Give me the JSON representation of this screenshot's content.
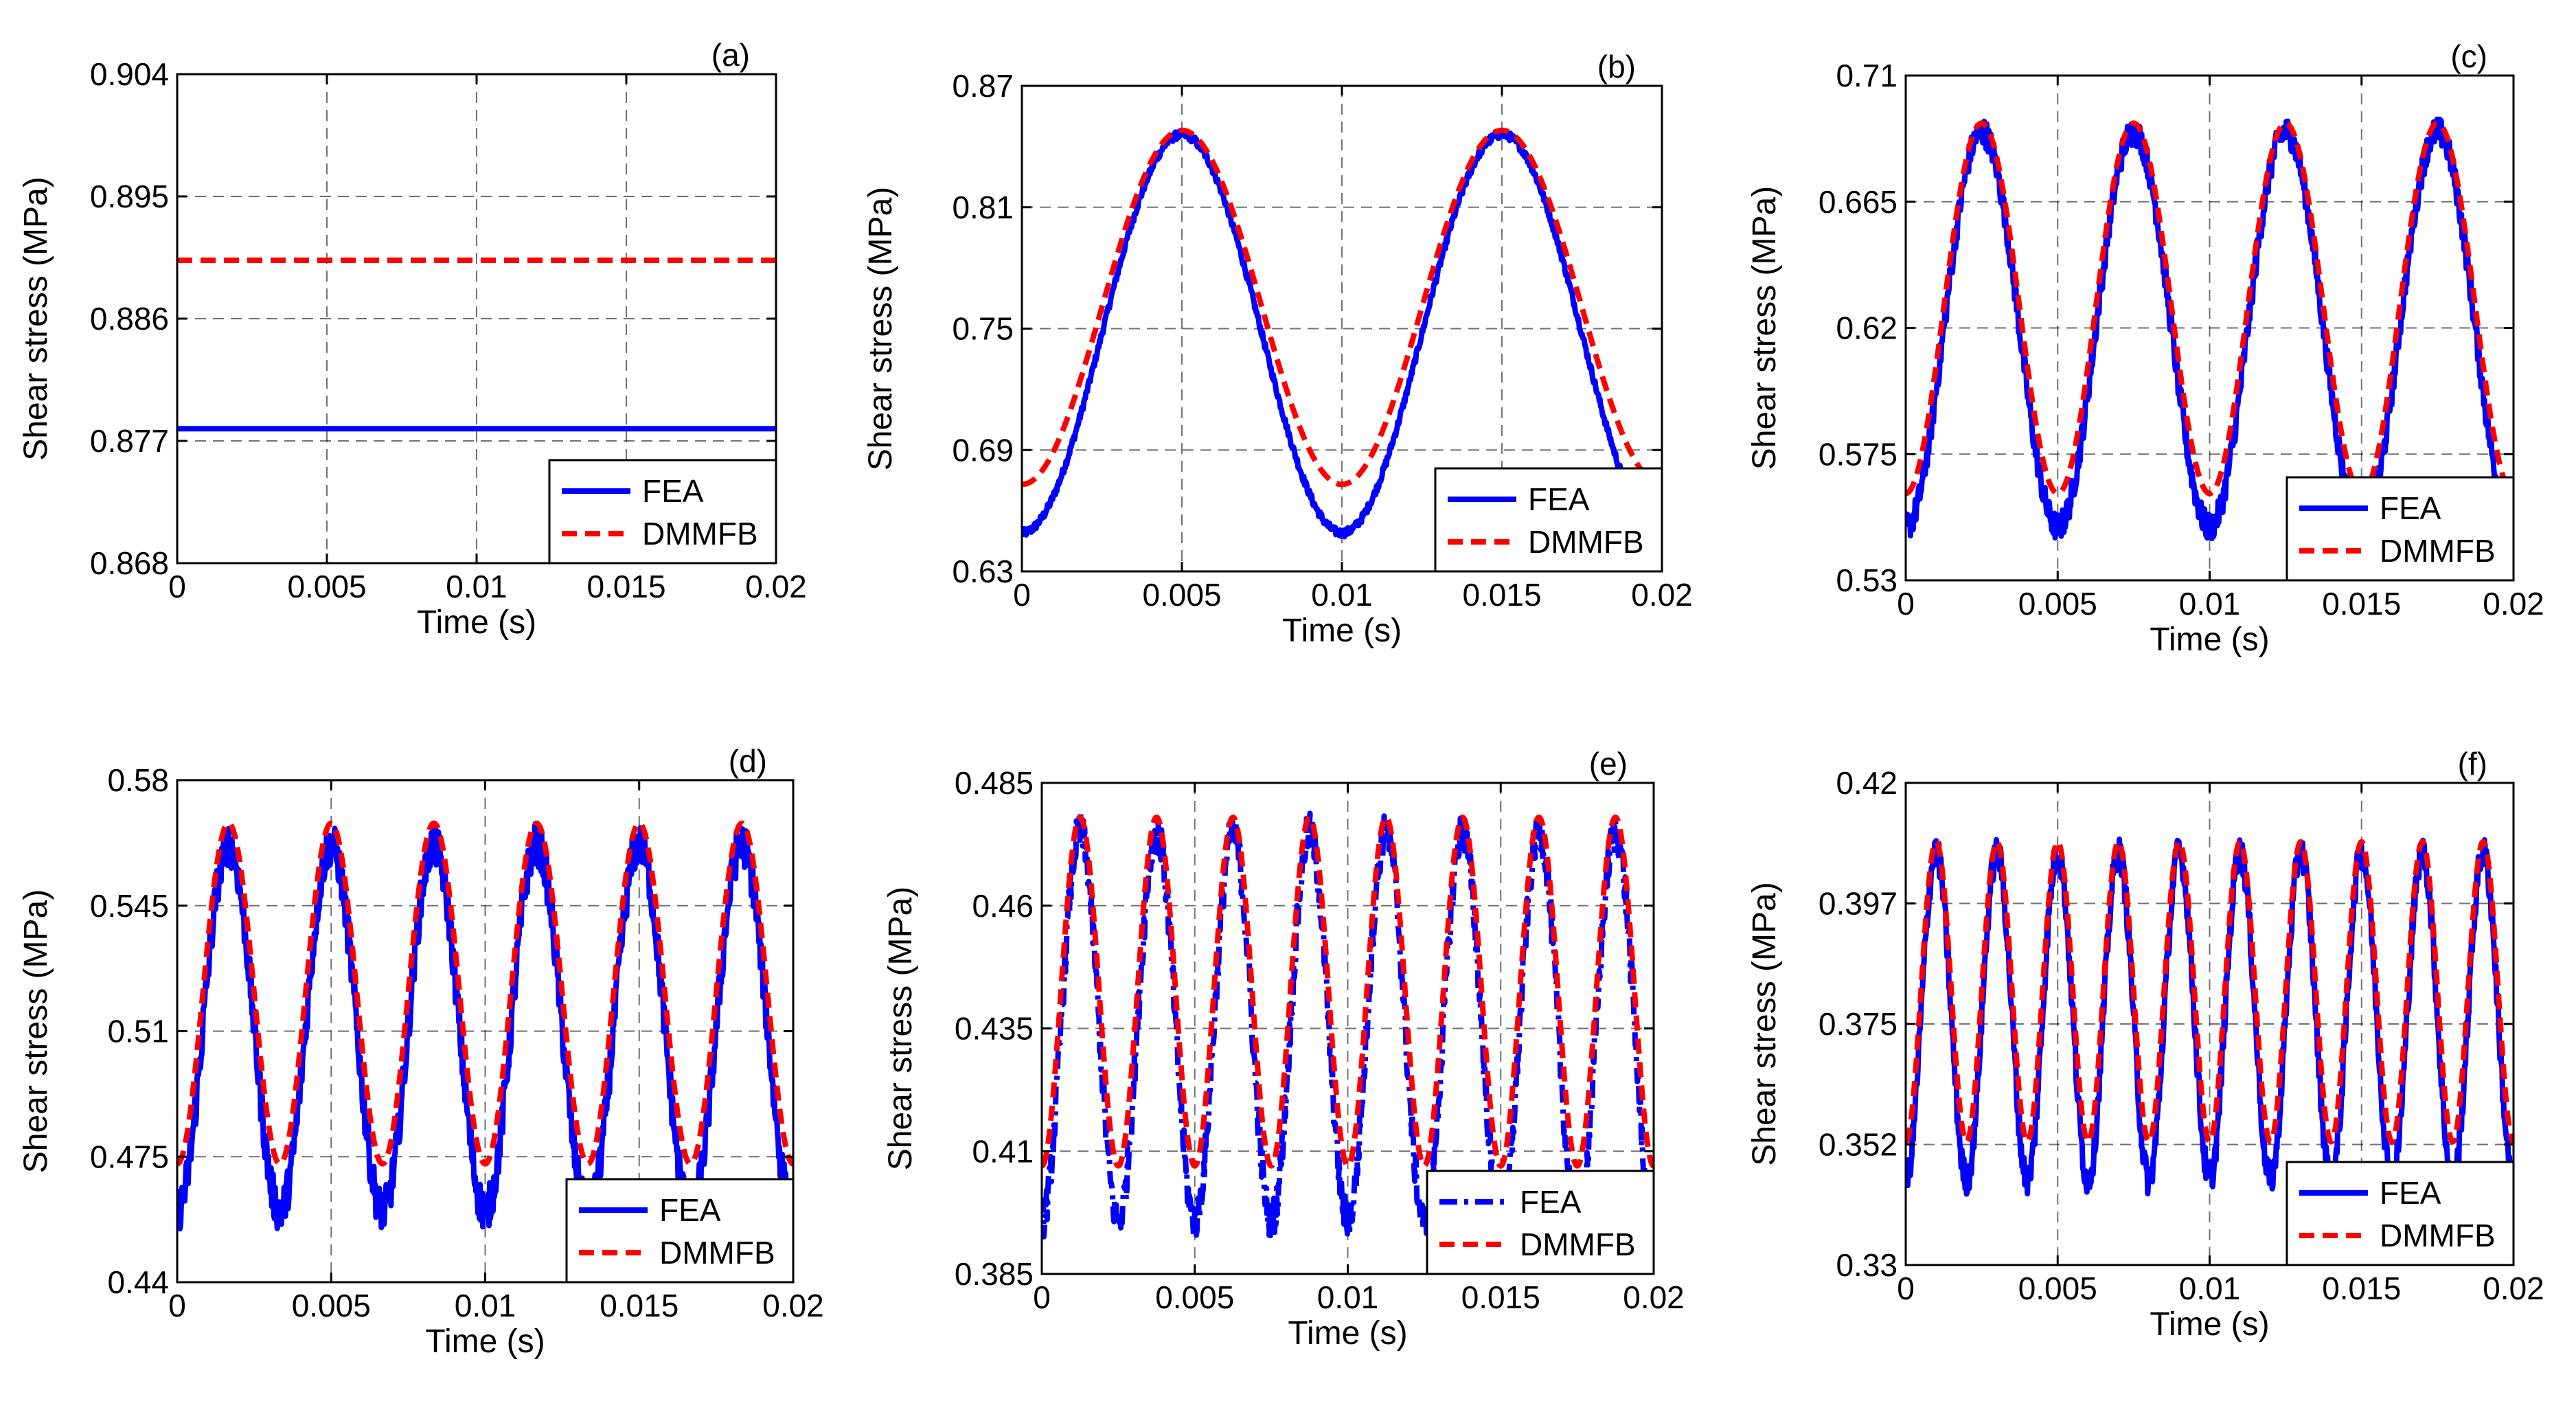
{
  "figure": {
    "colors": {
      "fea": "#0000ff",
      "dmmfb": "#ff0000",
      "grid": "#000000"
    }
  },
  "chart_data": [
    {
      "panel": "(a)",
      "type": "line",
      "xlabel": "Time (s)",
      "ylabel": "Shear stress (MPa)",
      "xlim": [
        0,
        0.02
      ],
      "ylim": [
        0.868,
        0.904
      ],
      "xticks": [
        "0",
        "0.005",
        "0.01",
        "0.015",
        "0.02"
      ],
      "yticks": [
        "0.868",
        "0.877",
        "0.886",
        "0.895",
        "0.904"
      ],
      "legend": {
        "entries": [
          "FEA",
          "DMMFB"
        ],
        "position": "bottom-right"
      },
      "series": [
        {
          "name": "FEA",
          "style": "solid",
          "mean": 0.8779,
          "amplitude": 0,
          "periods": 0,
          "minus_cos": false,
          "noise": 0
        },
        {
          "name": "DMMFB",
          "style": "dashed",
          "mean": 0.8903,
          "amplitude": 0,
          "periods": 0,
          "minus_cos": false,
          "noise": 0
        }
      ]
    },
    {
      "panel": "(b)",
      "type": "line",
      "xlabel": "Time (s)",
      "ylabel": "Shear stress (MPa)",
      "xlim": [
        0,
        0.02
      ],
      "ylim": [
        0.63,
        0.87
      ],
      "xticks": [
        "0",
        "0.005",
        "0.01",
        "0.015",
        "0.02"
      ],
      "yticks": [
        "0.63",
        "0.69",
        "0.75",
        "0.81",
        "0.87"
      ],
      "legend": {
        "entries": [
          "FEA",
          "DMMFB"
        ],
        "position": "bottom-right"
      },
      "series": [
        {
          "name": "FEA",
          "style": "solid",
          "mean": 0.7475,
          "amplitude": 0.0985,
          "periods": 2,
          "minus_cos": true,
          "noise": 0.002
        },
        {
          "name": "DMMFB",
          "style": "dashed",
          "mean": 0.7605,
          "amplitude": 0.0875,
          "periods": 2,
          "minus_cos": true,
          "noise": 0
        }
      ]
    },
    {
      "panel": "(c)",
      "type": "line",
      "xlabel": "Time (s)",
      "ylabel": "Shear stress (MPa)",
      "xlim": [
        0,
        0.02
      ],
      "ylim": [
        0.53,
        0.71
      ],
      "xticks": [
        "0",
        "0.005",
        "0.01",
        "0.015",
        "0.02"
      ],
      "yticks": [
        "0.53",
        "0.575",
        "0.62",
        "0.665",
        "0.71"
      ],
      "legend": {
        "entries": [
          "FEA",
          "DMMFB"
        ],
        "position": "bottom-right"
      },
      "series": [
        {
          "name": "FEA",
          "style": "solid",
          "mean": 0.6195,
          "amplitude": 0.0705,
          "periods": 4,
          "minus_cos": true,
          "noise": 0.005
        },
        {
          "name": "DMMFB",
          "style": "dashed",
          "mean": 0.627,
          "amplitude": 0.066,
          "periods": 4,
          "minus_cos": true,
          "noise": 0
        }
      ]
    },
    {
      "panel": "(d)",
      "type": "line",
      "xlabel": "Time (s)",
      "ylabel": "Shear stress (MPa)",
      "xlim": [
        0,
        0.02
      ],
      "ylim": [
        0.44,
        0.58
      ],
      "xticks": [
        "0",
        "0.005",
        "0.01",
        "0.015",
        "0.02"
      ],
      "yticks": [
        "0.44",
        "0.475",
        "0.51",
        "0.545",
        "0.58"
      ],
      "legend": {
        "entries": [
          "FEA",
          "DMMFB"
        ],
        "position": "bottom-right"
      },
      "series": [
        {
          "name": "FEA",
          "style": "solid",
          "mean": 0.511,
          "amplitude": 0.051,
          "periods": 6,
          "minus_cos": true,
          "noise": 0.006
        },
        {
          "name": "DMMFB",
          "style": "dashed",
          "mean": 0.5205,
          "amplitude": 0.0475,
          "periods": 6,
          "minus_cos": true,
          "noise": 0
        }
      ]
    },
    {
      "panel": "(e)",
      "type": "line",
      "xlabel": "Time (s)",
      "ylabel": "Shear stress (MPa)",
      "xlim": [
        0,
        0.02
      ],
      "ylim": [
        0.385,
        0.485
      ],
      "xticks": [
        "0",
        "0.005",
        "0.01",
        "0.015",
        "0.02"
      ],
      "yticks": [
        "0.385",
        "0.41",
        "0.435",
        "0.46",
        "0.485"
      ],
      "legend": {
        "entries": [
          "FEA",
          "DMMFB"
        ],
        "position": "bottom-right"
      },
      "series": [
        {
          "name": "FEA",
          "style": "dash-dot",
          "mean": 0.4355,
          "amplitude": 0.0395,
          "periods": 8,
          "minus_cos": true,
          "noise": 0.004
        },
        {
          "name": "DMMFB",
          "style": "dashed",
          "mean": 0.4425,
          "amplitude": 0.0355,
          "periods": 8,
          "minus_cos": true,
          "noise": 0
        }
      ]
    },
    {
      "panel": "(f)",
      "type": "line",
      "xlabel": "Time (s)",
      "ylabel": "Shear stress (MPa)",
      "xlim": [
        0,
        0.02
      ],
      "ylim": [
        0.33,
        0.42
      ],
      "xticks": [
        "0",
        "0.005",
        "0.01",
        "0.015",
        "0.02"
      ],
      "yticks": [
        "0.33",
        "0.352",
        "0.375",
        "0.397",
        "0.42"
      ],
      "legend": {
        "entries": [
          "FEA",
          "DMMFB"
        ],
        "position": "bottom-right"
      },
      "series": [
        {
          "name": "FEA",
          "style": "solid",
          "mean": 0.3765,
          "amplitude": 0.0305,
          "periods": 10,
          "minus_cos": true,
          "noise": 0.003
        },
        {
          "name": "DMMFB",
          "style": "dashed",
          "mean": 0.381,
          "amplitude": 0.028,
          "periods": 10,
          "minus_cos": true,
          "noise": 0
        }
      ]
    }
  ]
}
